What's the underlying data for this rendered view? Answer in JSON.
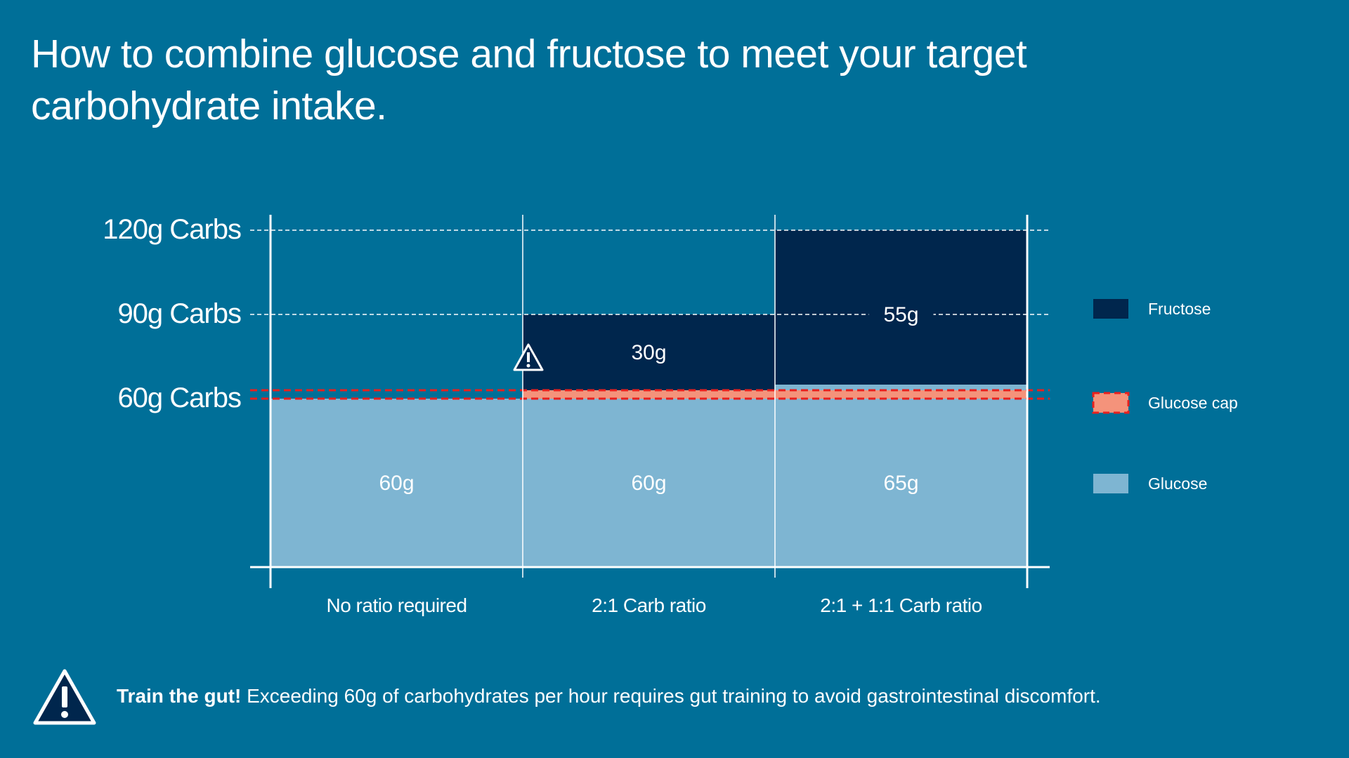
{
  "title": "How to combine glucose and fructose to meet your target carbohydrate intake.",
  "chart_data": {
    "type": "bar",
    "stacked": true,
    "categories": [
      "No ratio required",
      "2:1 Carb ratio",
      "2:1 + 1:1 Carb ratio"
    ],
    "series": [
      {
        "name": "Glucose",
        "values": [
          60,
          60,
          65
        ],
        "labels": [
          "60g",
          "60g",
          "65g"
        ],
        "color": "#7eb5d2"
      },
      {
        "name": "Fructose",
        "values": [
          0,
          30,
          55
        ],
        "labels": [
          "",
          "30g",
          "55g"
        ],
        "color": "#00264d"
      }
    ],
    "glucose_cap": {
      "name": "Glucose cap",
      "range": [
        60,
        63
      ],
      "color": "#f4937b",
      "line_color": "#e8201e"
    },
    "y_ticks": [
      {
        "value": 60,
        "label": "60g Carbs"
      },
      {
        "value": 90,
        "label": "90g Carbs"
      },
      {
        "value": 120,
        "label": "120g Carbs"
      }
    ],
    "ylim": [
      0,
      120
    ],
    "grid": true,
    "legend_position": "right",
    "legend": [
      {
        "name": "Fructose",
        "color": "#00264d",
        "style": "solid"
      },
      {
        "name": "Glucose cap",
        "color": "#f4937b",
        "style": "dashed-border"
      },
      {
        "name": "Glucose",
        "color": "#7eb5d2",
        "style": "solid"
      }
    ],
    "warning_category": 1
  },
  "footnote": {
    "bold": "Train the gut!",
    "text": " Exceeding 60g of carbohydrates per hour requires gut training to avoid gastrointestinal discomfort."
  },
  "icons": {
    "chart_warning": "warning-icon",
    "footnote_warning": "warning-icon"
  }
}
